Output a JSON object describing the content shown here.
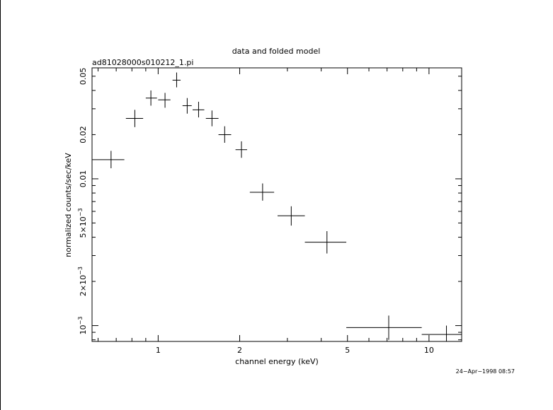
{
  "chart_data": {
    "type": "scatter",
    "title": "data and folded model",
    "subtitle": "ad81028000s010212_1.pi",
    "xlabel": "channel energy (keV)",
    "ylabel": "normalized counts/sec/keV",
    "x_scale": "log",
    "y_scale": "log",
    "xlim": [
      0.57,
      13.2
    ],
    "ylim": [
      0.00078,
      0.057
    ],
    "x_ticks": [
      {
        "value": 1,
        "label": "1"
      },
      {
        "value": 2,
        "label": "2"
      },
      {
        "value": 5,
        "label": "5"
      },
      {
        "value": 10,
        "label": "10"
      }
    ],
    "y_ticks": [
      {
        "value": 0.001,
        "mant": "10",
        "exp": "−3"
      },
      {
        "value": 0.002,
        "mant": "2×10",
        "exp": "−3"
      },
      {
        "value": 0.005,
        "mant": "5×10",
        "exp": "−3"
      },
      {
        "value": 0.01,
        "mant": "0.01",
        "exp": ""
      },
      {
        "value": 0.02,
        "mant": "0.02",
        "exp": ""
      },
      {
        "value": 0.05,
        "mant": "0.05",
        "exp": ""
      }
    ],
    "grid": false,
    "points": [
      {
        "x": 0.67,
        "y": 0.0135,
        "xlo": 0.57,
        "xhi": 0.75,
        "ylo": 0.0118,
        "yhi": 0.0155
      },
      {
        "x": 0.82,
        "y": 0.0258,
        "xlo": 0.76,
        "xhi": 0.88,
        "ylo": 0.0225,
        "yhi": 0.0295
      },
      {
        "x": 0.94,
        "y": 0.0355,
        "xlo": 0.9,
        "xhi": 0.99,
        "ylo": 0.0315,
        "yhi": 0.04
      },
      {
        "x": 1.06,
        "y": 0.0345,
        "xlo": 1.0,
        "xhi": 1.11,
        "ylo": 0.0305,
        "yhi": 0.0385
      },
      {
        "x": 1.17,
        "y": 0.047,
        "xlo": 1.13,
        "xhi": 1.21,
        "ylo": 0.042,
        "yhi": 0.053
      },
      {
        "x": 1.28,
        "y": 0.0315,
        "xlo": 1.23,
        "xhi": 1.33,
        "ylo": 0.0278,
        "yhi": 0.0355
      },
      {
        "x": 1.41,
        "y": 0.0295,
        "xlo": 1.34,
        "xhi": 1.48,
        "ylo": 0.0262,
        "yhi": 0.0335
      },
      {
        "x": 1.58,
        "y": 0.0258,
        "xlo": 1.5,
        "xhi": 1.67,
        "ylo": 0.0228,
        "yhi": 0.0292
      },
      {
        "x": 1.76,
        "y": 0.02,
        "xlo": 1.67,
        "xhi": 1.86,
        "ylo": 0.0176,
        "yhi": 0.0228
      },
      {
        "x": 2.03,
        "y": 0.0158,
        "xlo": 1.93,
        "xhi": 2.13,
        "ylo": 0.0139,
        "yhi": 0.018
      },
      {
        "x": 2.43,
        "y": 0.0081,
        "xlo": 2.18,
        "xhi": 2.68,
        "ylo": 0.0071,
        "yhi": 0.0093
      },
      {
        "x": 3.1,
        "y": 0.0056,
        "xlo": 2.76,
        "xhi": 3.48,
        "ylo": 0.0048,
        "yhi": 0.0065
      },
      {
        "x": 4.2,
        "y": 0.0037,
        "xlo": 3.48,
        "xhi": 4.95,
        "ylo": 0.0031,
        "yhi": 0.0044
      },
      {
        "x": 7.1,
        "y": 0.00097,
        "xlo": 4.95,
        "xhi": 9.4,
        "ylo": 0.0008,
        "yhi": 0.00117
      },
      {
        "x": 11.6,
        "y": 0.00087,
        "xlo": 9.4,
        "xhi": 13.2,
        "ylo": 0.00078,
        "yhi": 0.001
      }
    ]
  },
  "timestamp": "24−Apr−1998 08:57"
}
